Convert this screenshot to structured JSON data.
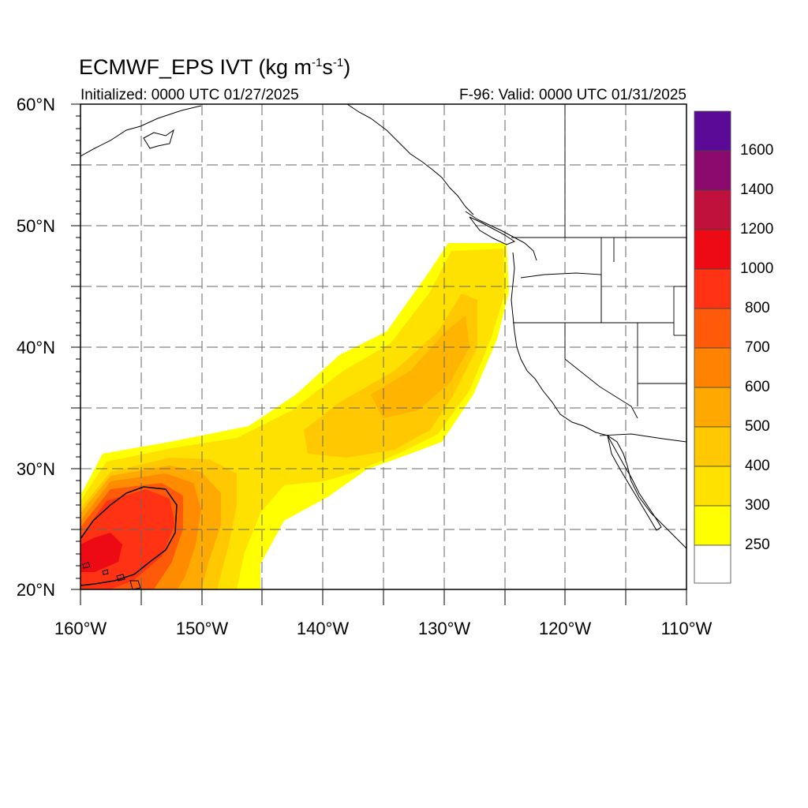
{
  "header": {
    "title": "ECMWF_EPS IVT (kg m-1s-1)",
    "title_main": "ECMWF_EPS IVT (kg m",
    "title_exp1": "-1",
    "title_mid": "s",
    "title_exp2": "-1",
    "title_end": ")",
    "initialized": "Initialized: 0000 UTC 01/27/2025",
    "valid": "F-96: Valid: 0000 UTC 01/31/2025"
  },
  "map": {
    "region": "Northeast Pacific / US West Coast",
    "lon_range": [
      -160,
      -110
    ],
    "lat_range": [
      20,
      60
    ],
    "lat_labels": [
      "60°N",
      "50°N",
      "40°N",
      "30°N",
      "20°N"
    ],
    "lon_labels": [
      "160°W",
      "150°W",
      "140°W",
      "130°W",
      "120°W",
      "110°W"
    ],
    "gridlines": "dashed, every 5°",
    "contour_line": "1000 kg m-1 s-1 closed contour near Hawaii"
  },
  "colorbar": {
    "labels": [
      "1600",
      "1400",
      "1200",
      "1000",
      "800",
      "700",
      "600",
      "500",
      "400",
      "300",
      "250"
    ],
    "colors": [
      "#5a0a96",
      "#8c0a6e",
      "#c0103c",
      "#ee0a14",
      "#ff3214",
      "#ff5a0a",
      "#ff8200",
      "#ffa800",
      "#ffc800",
      "#ffe100",
      "#ffff00",
      "#ffffff"
    ]
  }
}
